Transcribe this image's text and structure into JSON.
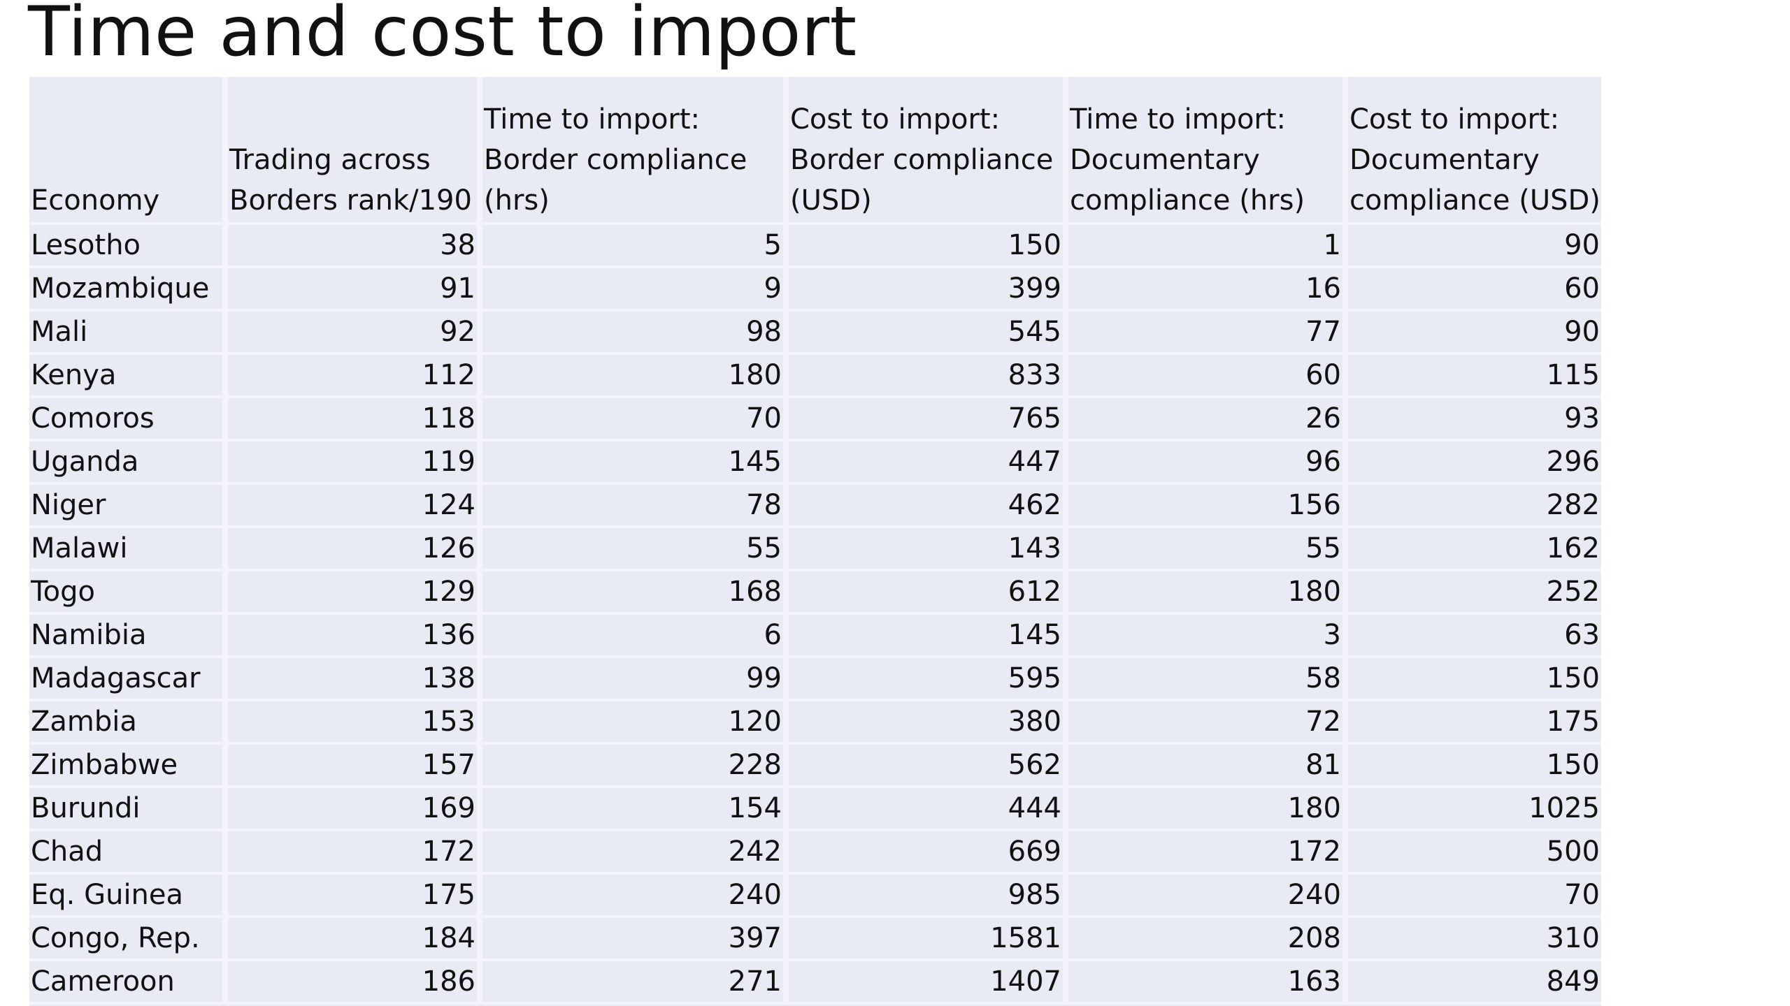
{
  "title": "Time and cost to import",
  "table": {
    "headers": [
      [
        "Economy"
      ],
      [
        "Trading across",
        "Borders rank/190"
      ],
      [
        "Time to import:",
        "Border compliance",
        "(hrs)"
      ],
      [
        "Cost to import:",
        "Border compliance",
        "(USD)"
      ],
      [
        "Time to import:",
        "Documentary",
        "compliance (hrs)"
      ],
      [
        "Cost to import:",
        " Documentary",
        "compliance (USD)"
      ]
    ],
    "rows": [
      [
        "Lesotho",
        "38",
        "5",
        "150",
        "1",
        "90"
      ],
      [
        "Mozambique",
        "91",
        "9",
        "399",
        "16",
        "60"
      ],
      [
        "Mali",
        "92",
        "98",
        "545",
        "77",
        "90"
      ],
      [
        "Kenya",
        "112",
        "180",
        "833",
        "60",
        "115"
      ],
      [
        "Comoros",
        "118",
        "70",
        "765",
        "26",
        "93"
      ],
      [
        "Uganda",
        "119",
        "145",
        "447",
        "96",
        "296"
      ],
      [
        "Niger",
        "124",
        "78",
        "462",
        "156",
        "282"
      ],
      [
        "Malawi",
        "126",
        "55",
        "143",
        "55",
        "162"
      ],
      [
        "Togo",
        "129",
        "168",
        "612",
        "180",
        "252"
      ],
      [
        "Namibia",
        "136",
        "6",
        "145",
        "3",
        "63"
      ],
      [
        "Madagascar",
        "138",
        "99",
        "595",
        "58",
        "150"
      ],
      [
        "Zambia",
        "153",
        "120",
        "380",
        "72",
        "175"
      ],
      [
        "Zimbabwe",
        "157",
        "228",
        "562",
        "81",
        "150"
      ],
      [
        "Burundi",
        "169",
        "154",
        "444",
        "180",
        "1025"
      ],
      [
        "Chad",
        "172",
        "242",
        "669",
        "172",
        "500"
      ],
      [
        "Eq. Guinea",
        "175",
        "240",
        "985",
        "240",
        "70"
      ],
      [
        "Congo, Rep.",
        "184",
        "397",
        "1581",
        "208",
        "310"
      ],
      [
        "Cameroon",
        "186",
        "271",
        "1407",
        "163",
        "849"
      ]
    ]
  }
}
